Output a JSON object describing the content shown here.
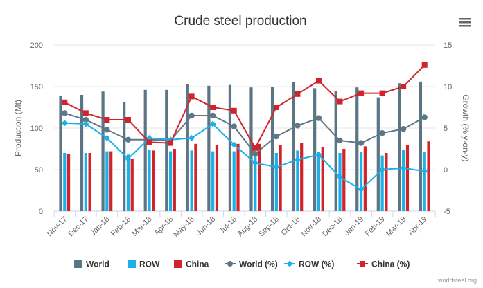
{
  "chart_data": {
    "type": "bar",
    "title": "Crude steel production",
    "ylabel": "Production (Mt)",
    "y2label": "Growth (% y-on-y)",
    "ylim": [
      0,
      200
    ],
    "y2lim": [
      -5,
      15
    ],
    "yticks": [
      "0",
      "50",
      "100",
      "150",
      "200"
    ],
    "y2ticks": [
      "-5",
      "0",
      "5",
      "10",
      "15"
    ],
    "grid": true,
    "legend_position": "bottom",
    "categories": [
      "Nov-17",
      "Dec-17",
      "Jan-18",
      "Feb-18",
      "Mar-18",
      "Apr-18",
      "May-18",
      "Jun-18",
      "Jul-18",
      "Aug-18",
      "Sep-18",
      "Oct-18",
      "Nov-18",
      "Dec-18",
      "Jan-19",
      "Feb-19",
      "Mar-19",
      "Apr-19"
    ],
    "bar_series": [
      {
        "name": "World",
        "color": "#5b7585",
        "values": [
          139,
          140,
          144,
          131,
          146,
          146,
          153,
          151,
          152,
          149,
          150,
          155,
          148,
          145,
          149,
          137,
          154,
          156
        ]
      },
      {
        "name": "ROW",
        "color": "#1ab0e8",
        "values": [
          70,
          70,
          72,
          68,
          74,
          72,
          73,
          72,
          72,
          71,
          70,
          73,
          71,
          70,
          71,
          67,
          74,
          71
        ]
      },
      {
        "name": "China",
        "color": "#d2232a",
        "values": [
          69,
          70,
          72,
          63,
          73,
          75,
          81,
          80,
          81,
          81,
          80,
          82,
          77,
          75,
          78,
          70,
          80,
          84
        ]
      }
    ],
    "line_series": [
      {
        "name": "World (%)",
        "color": "#5e7686",
        "marker": "circle",
        "values": [
          6.8,
          6.0,
          4.8,
          3.6,
          3.6,
          3.5,
          6.5,
          6.5,
          5.2,
          1.9,
          4.0,
          5.3,
          6.2,
          3.5,
          3.2,
          4.4,
          4.9,
          6.3
        ]
      },
      {
        "name": "ROW (%)",
        "color": "#1ab0e8",
        "marker": "diamond",
        "values": [
          5.6,
          5.5,
          3.8,
          1.3,
          3.8,
          3.6,
          3.8,
          5.5,
          3.0,
          0.8,
          0.3,
          1.2,
          1.8,
          -0.9,
          -2.4,
          0.0,
          0.2,
          -0.2
        ]
      },
      {
        "name": "China (%)",
        "color": "#d2232a",
        "marker": "square",
        "values": [
          8.1,
          6.8,
          6.0,
          6.0,
          3.3,
          3.2,
          8.8,
          7.5,
          7.1,
          2.6,
          7.5,
          9.1,
          10.7,
          8.2,
          9.2,
          9.2,
          10.0,
          12.6
        ]
      }
    ]
  },
  "credits": "worldsteel.org",
  "menu_icon": "hamburger-menu-icon"
}
